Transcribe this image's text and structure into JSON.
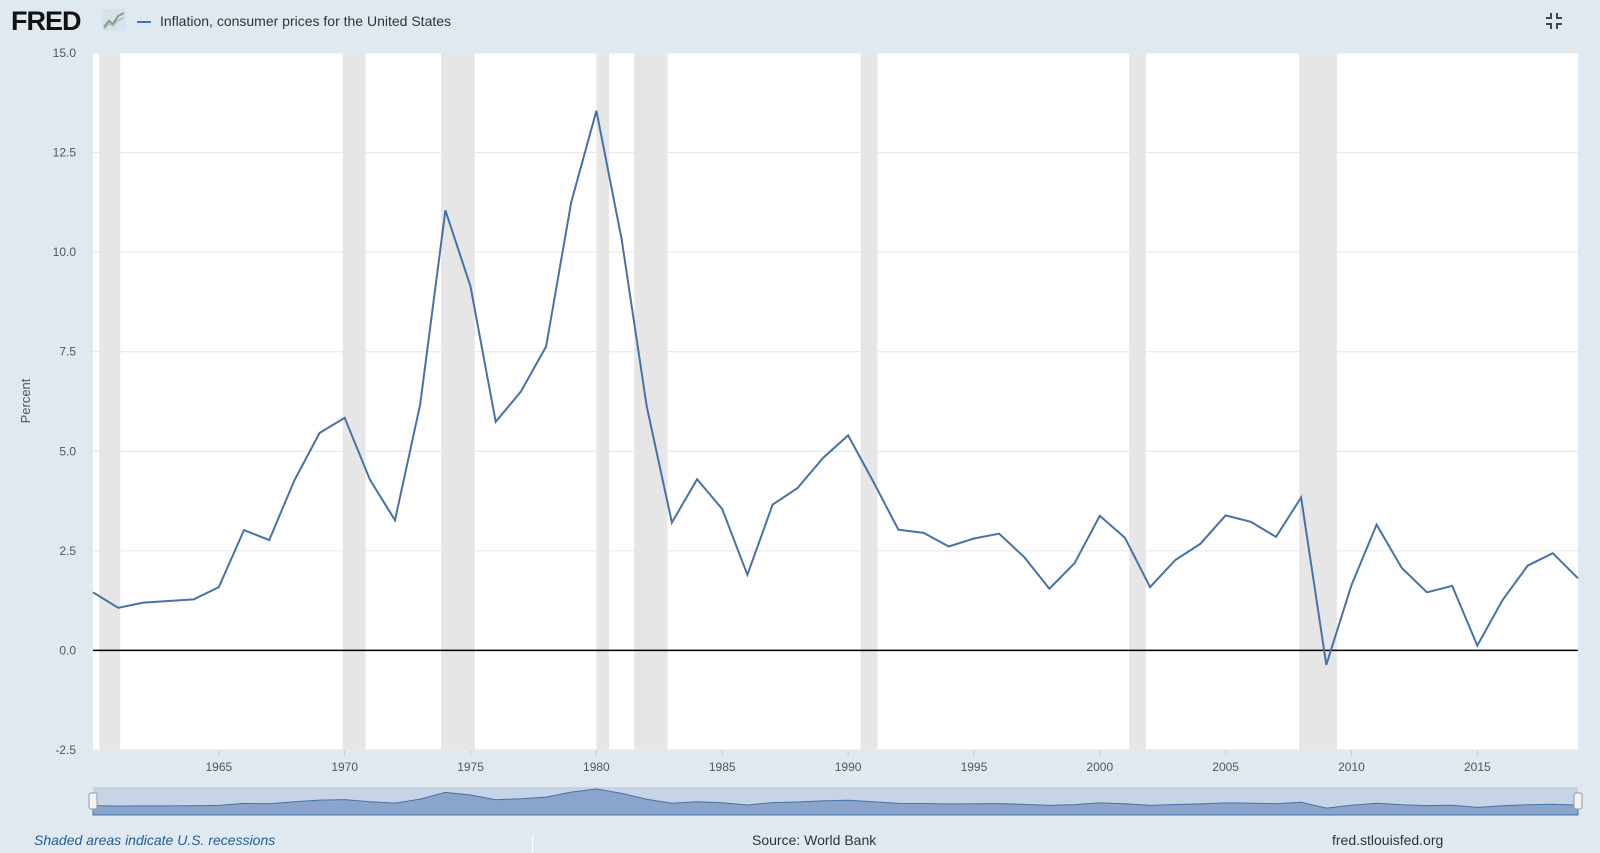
{
  "header": {
    "logo_text": "FRED",
    "logo_icon": "fred-graph-icon",
    "legend_label": "Inflation, consumer prices for the United States",
    "series_color": "#4572a7",
    "fullscreen_icon": "exit-fullscreen-icon"
  },
  "footer": {
    "recession_note": "Shaded areas indicate U.S. recessions",
    "source": "Source: World Bank",
    "site": "fred.stlouisfed.org"
  },
  "chart_data": {
    "type": "line",
    "title": "",
    "xlabel": "",
    "ylabel": "Percent",
    "xlim": [
      1960,
      2019
    ],
    "ylim": [
      -2.5,
      15.0
    ],
    "y_ticks": [
      "15.0",
      "12.5",
      "10.0",
      "7.5",
      "5.0",
      "2.5",
      "0.0",
      "-2.5"
    ],
    "x_ticks": [
      "1965",
      "1970",
      "1975",
      "1980",
      "1985",
      "1990",
      "1995",
      "2000",
      "2005",
      "2010",
      "2015"
    ],
    "grid": "horizontal",
    "legend_position": "top-left",
    "zero_line": true,
    "recessions": [
      [
        1960.25,
        1961.08
      ],
      [
        1969.92,
        1970.83
      ],
      [
        1973.83,
        1975.17
      ],
      [
        1980.0,
        1980.5
      ],
      [
        1981.5,
        1982.83
      ],
      [
        1990.5,
        1991.17
      ],
      [
        2001.17,
        2001.83
      ],
      [
        2007.92,
        2009.42
      ]
    ],
    "series": [
      {
        "name": "Inflation, consumer prices for the United States",
        "x": [
          1960,
          1961,
          1962,
          1963,
          1964,
          1965,
          1966,
          1967,
          1968,
          1969,
          1970,
          1971,
          1972,
          1973,
          1974,
          1975,
          1976,
          1977,
          1978,
          1979,
          1980,
          1981,
          1982,
          1983,
          1984,
          1985,
          1986,
          1987,
          1988,
          1989,
          1990,
          1991,
          1992,
          1993,
          1994,
          1995,
          1996,
          1997,
          1998,
          1999,
          2000,
          2001,
          2002,
          2003,
          2004,
          2005,
          2006,
          2007,
          2008,
          2009,
          2010,
          2011,
          2012,
          2013,
          2014,
          2015,
          2016,
          2017,
          2018,
          2019
        ],
        "values": [
          1.46,
          1.07,
          1.2,
          1.24,
          1.28,
          1.59,
          3.02,
          2.77,
          4.27,
          5.46,
          5.84,
          4.29,
          3.27,
          6.18,
          11.05,
          9.14,
          5.74,
          6.5,
          7.63,
          11.25,
          13.55,
          10.33,
          6.13,
          3.21,
          4.3,
          3.55,
          1.9,
          3.66,
          4.08,
          4.83,
          5.4,
          4.24,
          3.03,
          2.95,
          2.61,
          2.81,
          2.93,
          2.34,
          1.55,
          2.19,
          3.38,
          2.83,
          1.59,
          2.27,
          2.68,
          3.39,
          3.23,
          2.85,
          3.84,
          -0.36,
          1.64,
          3.16,
          2.07,
          1.46,
          1.62,
          0.12,
          1.26,
          2.13,
          2.44,
          1.81
        ]
      }
    ]
  }
}
